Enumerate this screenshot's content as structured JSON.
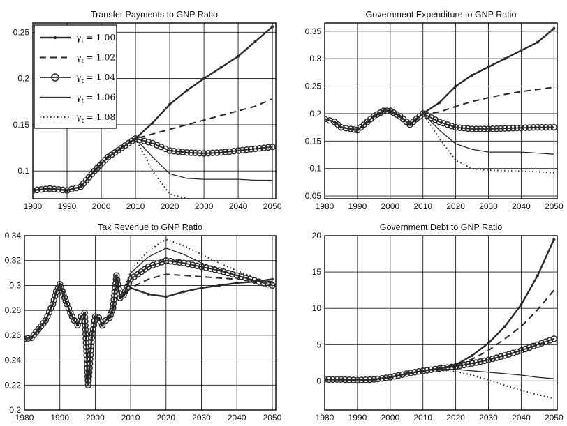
{
  "figure": {
    "legend_title_prefix": "γ",
    "legend_subscript": "t",
    "legend_eq": "= "
  },
  "chart_data": [
    {
      "type": "line",
      "title": "Transfer Payments to GNP Ratio",
      "xlabel": "",
      "ylabel": "",
      "xlim": [
        1980,
        2051
      ],
      "ylim": [
        0.07,
        0.26
      ],
      "xticks": [
        1980,
        1990,
        2000,
        2010,
        2020,
        2030,
        2040,
        2050
      ],
      "yticks": [
        0.1,
        0.15,
        0.2,
        0.25
      ],
      "ytick_labels": [
        "0.1",
        "0.15",
        "0.2",
        "0.25"
      ],
      "grid": true,
      "legend": "top-left",
      "x": [
        1980,
        1985,
        1990,
        1994,
        1998,
        2002,
        2006,
        2010,
        2015,
        2020,
        2025,
        2030,
        2035,
        2040,
        2045,
        2050
      ],
      "series": [
        {
          "name": "1.00",
          "style": "solid-dot",
          "values": [
            0.079,
            0.081,
            0.079,
            0.083,
            0.1,
            0.115,
            0.125,
            0.135,
            0.152,
            0.172,
            0.187,
            0.2,
            0.212,
            0.224,
            0.24,
            0.256
          ]
        },
        {
          "name": "1.02",
          "style": "dashed",
          "values": [
            0.079,
            0.081,
            0.079,
            0.083,
            0.1,
            0.115,
            0.125,
            0.135,
            0.14,
            0.145,
            0.15,
            0.155,
            0.16,
            0.165,
            0.17,
            0.178
          ]
        },
        {
          "name": "1.04",
          "style": "circles",
          "values": [
            0.079,
            0.081,
            0.079,
            0.083,
            0.1,
            0.115,
            0.125,
            0.135,
            0.13,
            0.122,
            0.12,
            0.119,
            0.12,
            0.122,
            0.124,
            0.126
          ]
        },
        {
          "name": "1.06",
          "style": "thin",
          "values": [
            0.079,
            0.081,
            0.079,
            0.083,
            0.1,
            0.115,
            0.125,
            0.135,
            0.115,
            0.097,
            0.092,
            0.091,
            0.091,
            0.091,
            0.09,
            0.09
          ]
        },
        {
          "name": "1.08",
          "style": "dotted",
          "values": [
            0.079,
            0.081,
            0.079,
            0.083,
            0.1,
            0.115,
            0.125,
            0.135,
            0.1,
            0.075,
            0.07,
            0.069,
            0.068,
            0.067,
            0.066,
            0.065
          ]
        }
      ]
    },
    {
      "type": "line",
      "title": "Government Expenditure to GNP Ratio",
      "xlabel": "",
      "ylabel": "",
      "xlim": [
        1980,
        2051
      ],
      "ylim": [
        0.045,
        0.365
      ],
      "xticks": [
        1980,
        1990,
        2000,
        2010,
        2020,
        2030,
        2040,
        2050
      ],
      "yticks": [
        0.05,
        0.1,
        0.15,
        0.2,
        0.25,
        0.3,
        0.35
      ],
      "ytick_labels": [
        "0.05",
        "0.1",
        "0.15",
        "0.2",
        "0.25",
        "0.3",
        "0.35"
      ],
      "grid": true,
      "x": [
        1980,
        1983,
        1985,
        1988,
        1990,
        1993,
        1995,
        1998,
        2000,
        2003,
        2006,
        2008,
        2010,
        2015,
        2020,
        2025,
        2030,
        2035,
        2040,
        2045,
        2050
      ],
      "series": [
        {
          "name": "1.00",
          "style": "solid-dot",
          "values": [
            0.19,
            0.185,
            0.175,
            0.172,
            0.17,
            0.185,
            0.195,
            0.205,
            0.205,
            0.195,
            0.18,
            0.19,
            0.2,
            0.22,
            0.25,
            0.27,
            0.285,
            0.3,
            0.315,
            0.33,
            0.355
          ]
        },
        {
          "name": "1.02",
          "style": "dashed",
          "values": [
            0.19,
            0.185,
            0.175,
            0.172,
            0.17,
            0.185,
            0.195,
            0.205,
            0.205,
            0.195,
            0.18,
            0.19,
            0.2,
            0.203,
            0.213,
            0.222,
            0.229,
            0.235,
            0.24,
            0.244,
            0.248
          ]
        },
        {
          "name": "1.04",
          "style": "circles",
          "values": [
            0.19,
            0.185,
            0.175,
            0.172,
            0.17,
            0.185,
            0.195,
            0.205,
            0.205,
            0.195,
            0.18,
            0.19,
            0.2,
            0.185,
            0.175,
            0.172,
            0.172,
            0.173,
            0.174,
            0.175,
            0.175
          ]
        },
        {
          "name": "1.06",
          "style": "thin",
          "values": [
            0.19,
            0.185,
            0.175,
            0.172,
            0.17,
            0.185,
            0.195,
            0.205,
            0.205,
            0.195,
            0.18,
            0.19,
            0.2,
            0.17,
            0.145,
            0.135,
            0.13,
            0.13,
            0.13,
            0.128,
            0.126
          ]
        },
        {
          "name": "1.08",
          "style": "dotted",
          "values": [
            0.19,
            0.185,
            0.175,
            0.172,
            0.17,
            0.185,
            0.195,
            0.205,
            0.205,
            0.195,
            0.18,
            0.19,
            0.2,
            0.155,
            0.115,
            0.1,
            0.097,
            0.096,
            0.095,
            0.094,
            0.092
          ]
        }
      ]
    },
    {
      "type": "line",
      "title": "Tax Revenue to GNP Ratio",
      "xlabel": "",
      "ylabel": "",
      "xlim": [
        1980,
        2051
      ],
      "ylim": [
        0.2,
        0.34
      ],
      "xticks": [
        1980,
        1990,
        2000,
        2010,
        2020,
        2030,
        2040,
        2050
      ],
      "yticks": [
        0.2,
        0.22,
        0.24,
        0.26,
        0.28,
        0.3,
        0.32,
        0.34
      ],
      "ytick_labels": [
        "0.2",
        "0.22",
        "0.24",
        "0.26",
        "0.28",
        "0.3",
        "0.32",
        "0.34"
      ],
      "grid": true,
      "x": [
        1980,
        1982,
        1984,
        1986,
        1988,
        1989,
        1990,
        1991,
        1992,
        1993,
        1994,
        1995,
        1996,
        1997,
        1998,
        1999,
        2000,
        2001,
        2002,
        2003,
        2004,
        2005,
        2006,
        2007,
        2008,
        2010,
        2015,
        2020,
        2025,
        2030,
        2035,
        2040,
        2045,
        2050
      ],
      "series": [
        {
          "name": "1.00",
          "style": "solid-dot",
          "values": [
            0.257,
            0.258,
            0.265,
            0.272,
            0.285,
            0.295,
            0.301,
            0.293,
            0.285,
            0.278,
            0.272,
            0.268,
            0.275,
            0.278,
            0.22,
            0.258,
            0.275,
            0.274,
            0.268,
            0.272,
            0.274,
            0.282,
            0.308,
            0.29,
            0.292,
            0.298,
            0.293,
            0.291,
            0.295,
            0.298,
            0.3,
            0.302,
            0.303,
            0.305
          ]
        },
        {
          "name": "1.02",
          "style": "dashed",
          "values": [
            0.257,
            0.258,
            0.265,
            0.272,
            0.285,
            0.295,
            0.301,
            0.293,
            0.285,
            0.278,
            0.272,
            0.268,
            0.275,
            0.278,
            0.22,
            0.258,
            0.275,
            0.274,
            0.268,
            0.272,
            0.274,
            0.282,
            0.308,
            0.29,
            0.292,
            0.298,
            0.305,
            0.309,
            0.308,
            0.307,
            0.306,
            0.305,
            0.304,
            0.303
          ]
        },
        {
          "name": "1.04",
          "style": "circles",
          "values": [
            0.257,
            0.258,
            0.265,
            0.272,
            0.285,
            0.295,
            0.301,
            0.293,
            0.285,
            0.278,
            0.272,
            0.268,
            0.275,
            0.278,
            0.22,
            0.258,
            0.275,
            0.274,
            0.268,
            0.272,
            0.274,
            0.282,
            0.308,
            0.29,
            0.292,
            0.305,
            0.315,
            0.32,
            0.318,
            0.315,
            0.312,
            0.308,
            0.304,
            0.3
          ]
        },
        {
          "name": "1.06",
          "style": "thin",
          "values": [
            0.257,
            0.258,
            0.265,
            0.272,
            0.285,
            0.295,
            0.301,
            0.293,
            0.285,
            0.278,
            0.272,
            0.268,
            0.275,
            0.278,
            0.22,
            0.258,
            0.275,
            0.274,
            0.268,
            0.272,
            0.274,
            0.282,
            0.308,
            0.29,
            0.292,
            0.31,
            0.323,
            0.33,
            0.325,
            0.318,
            0.313,
            0.308,
            0.304,
            0.302
          ]
        },
        {
          "name": "1.08",
          "style": "dotted",
          "values": [
            0.257,
            0.258,
            0.265,
            0.272,
            0.285,
            0.295,
            0.301,
            0.293,
            0.285,
            0.278,
            0.272,
            0.268,
            0.275,
            0.278,
            0.22,
            0.258,
            0.275,
            0.274,
            0.268,
            0.272,
            0.274,
            0.282,
            0.308,
            0.29,
            0.292,
            0.312,
            0.328,
            0.337,
            0.332,
            0.325,
            0.318,
            0.312,
            0.306,
            0.3
          ]
        }
      ]
    },
    {
      "type": "line",
      "title": "Government Debt to GNP Ratio",
      "xlabel": "",
      "ylabel": "",
      "xlim": [
        1980,
        2051
      ],
      "ylim": [
        -4,
        20
      ],
      "xticks": [
        1980,
        1990,
        2000,
        2010,
        2020,
        2030,
        2040,
        2050
      ],
      "yticks": [
        0,
        5,
        10,
        15,
        20
      ],
      "ytick_labels": [
        "0",
        "5",
        "10",
        "15",
        "20"
      ],
      "grid": true,
      "x": [
        1980,
        1985,
        1990,
        1995,
        2000,
        2005,
        2010,
        2015,
        2020,
        2025,
        2030,
        2035,
        2040,
        2045,
        2050
      ],
      "series": [
        {
          "name": "1.00",
          "style": "solid-dot",
          "values": [
            0.2,
            0.2,
            0.1,
            0.2,
            0.5,
            1.0,
            1.4,
            1.7,
            2.2,
            3.5,
            5.2,
            7.5,
            10.5,
            14.5,
            19.5
          ]
        },
        {
          "name": "1.02",
          "style": "dashed",
          "values": [
            0.2,
            0.2,
            0.1,
            0.2,
            0.5,
            1.0,
            1.4,
            1.7,
            2.1,
            3.0,
            4.2,
            5.8,
            7.5,
            9.8,
            12.5
          ]
        },
        {
          "name": "1.04",
          "style": "circles",
          "values": [
            0.2,
            0.2,
            0.1,
            0.2,
            0.5,
            1.0,
            1.4,
            1.7,
            2.0,
            2.4,
            2.9,
            3.5,
            4.2,
            5.0,
            5.8
          ]
        },
        {
          "name": "1.06",
          "style": "thin",
          "values": [
            0.2,
            0.2,
            0.1,
            0.2,
            0.5,
            1.0,
            1.4,
            1.6,
            1.6,
            1.4,
            1.2,
            1.0,
            0.8,
            0.5,
            0.3
          ]
        },
        {
          "name": "1.08",
          "style": "dotted",
          "values": [
            0.2,
            0.2,
            0.1,
            0.2,
            0.5,
            1.0,
            1.4,
            1.5,
            1.3,
            0.8,
            0.1,
            -0.6,
            -1.3,
            -1.9,
            -2.4
          ]
        }
      ]
    }
  ]
}
